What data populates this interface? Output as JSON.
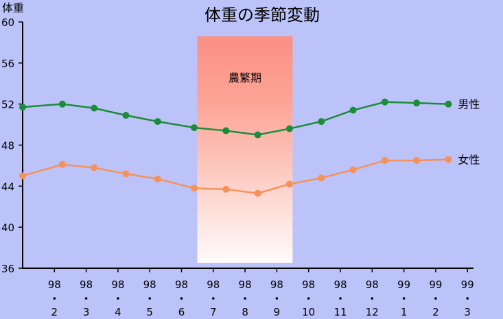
{
  "chart_data": {
    "type": "line",
    "title": "体重の季節変動",
    "ylabel": "体重",
    "xlabel": "",
    "ylim": [
      36,
      60
    ],
    "yticks": [
      36,
      40,
      44,
      48,
      52,
      56,
      60
    ],
    "categories": [
      [
        "98",
        "2"
      ],
      [
        "98",
        "3"
      ],
      [
        "98",
        "4"
      ],
      [
        "98",
        "5"
      ],
      [
        "98",
        "6"
      ],
      [
        "98",
        "7"
      ],
      [
        "98",
        "8"
      ],
      [
        "98",
        "9"
      ],
      [
        "98",
        "10"
      ],
      [
        "98",
        "11"
      ],
      [
        "98",
        "12"
      ],
      [
        "99",
        "1"
      ],
      [
        "99",
        "2"
      ],
      [
        "99",
        "3"
      ]
    ],
    "series": [
      {
        "name": "男性",
        "color": "#1a8c3a",
        "x": [
          0.0,
          1.25,
          2.25,
          3.25,
          4.25,
          5.4,
          6.4,
          7.4,
          8.4,
          9.4,
          10.4,
          11.4,
          12.4,
          13.4
        ],
        "values": [
          51.7,
          52.0,
          51.6,
          50.9,
          50.3,
          49.7,
          49.4,
          49.0,
          49.6,
          50.3,
          51.4,
          52.2,
          52.1,
          52.0
        ]
      },
      {
        "name": "女性",
        "color": "#f5915a",
        "x": [
          0.0,
          1.25,
          2.25,
          3.25,
          4.25,
          5.4,
          6.4,
          7.4,
          8.4,
          9.4,
          10.4,
          11.4,
          12.4,
          13.4
        ],
        "values": [
          45.0,
          46.1,
          45.8,
          45.2,
          44.7,
          43.8,
          43.7,
          43.3,
          44.2,
          44.8,
          45.6,
          46.5,
          46.5,
          46.6
        ]
      }
    ],
    "annotations": [
      {
        "text": "農繁期",
        "from_index": 5,
        "to_index": 8
      }
    ],
    "grid": false,
    "legend": "right"
  }
}
